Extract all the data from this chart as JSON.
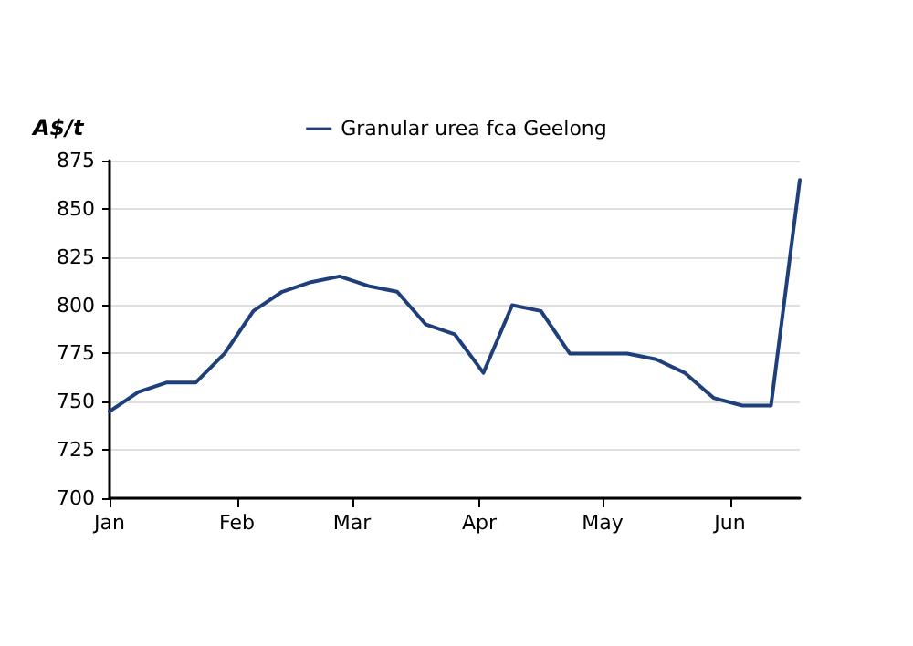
{
  "chart_data": {
    "type": "line",
    "ylabel": "A$/t",
    "x": [
      "--01-01",
      "--01-08",
      "--01-15",
      "--01-22",
      "--01-29",
      "--02-05",
      "--02-12",
      "--02-19",
      "--02-26",
      "--03-05",
      "--03-12",
      "--03-19",
      "--03-26",
      "--04-02",
      "--04-09",
      "--04-16",
      "--04-23",
      "--04-30",
      "--05-07",
      "--05-14",
      "--05-21",
      "--05-28",
      "--06-04",
      "--06-11",
      "--06-18"
    ],
    "series": [
      {
        "name": "Granular urea fca Geelong",
        "color": "#1f3f7a",
        "values": [
          745,
          755,
          760,
          760,
          775,
          797,
          807,
          812,
          815,
          810,
          807,
          790,
          785,
          765,
          800,
          797,
          775,
          775,
          775,
          772,
          765,
          752,
          748,
          748,
          865
        ]
      }
    ],
    "xlim": [
      "--01-01",
      "--06-18"
    ],
    "xticks": [
      {
        "value": "--01-01",
        "label": "Jan"
      },
      {
        "value": "--02-01",
        "label": "Feb"
      },
      {
        "value": "--03-01",
        "label": "Mar"
      },
      {
        "value": "--04-01",
        "label": "Apr"
      },
      {
        "value": "--05-01",
        "label": "May"
      },
      {
        "value": "--06-01",
        "label": "Jun"
      }
    ],
    "ylim": [
      700,
      875
    ],
    "yticks": [
      700,
      725,
      750,
      775,
      800,
      825,
      850,
      875
    ],
    "grid": "y",
    "legend": "top",
    "marker": "none",
    "line_style": "solid"
  }
}
